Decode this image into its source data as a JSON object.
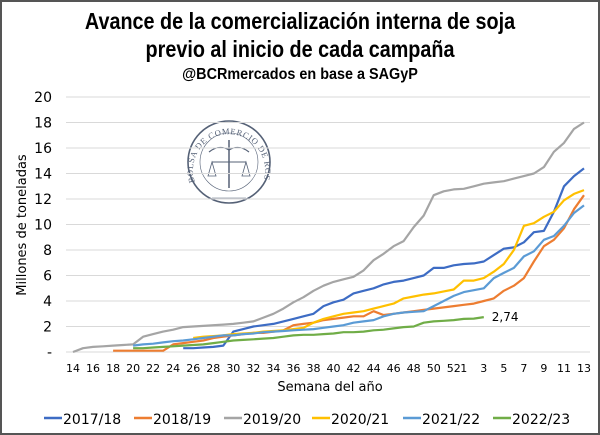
{
  "chart_data": {
    "type": "line",
    "title": [
      "Avance de la comercialización interna de soja",
      "previo al inicio de cada campaña"
    ],
    "subtitle": "@BCRmercados en base a SAGyP",
    "xlabel": "Semana del año",
    "ylabel": "Millones de toneladas",
    "ylim": [
      0,
      20
    ],
    "yticks": [
      0,
      2,
      4,
      6,
      8,
      10,
      12,
      14,
      16,
      18,
      20
    ],
    "ytick_labels": [
      "-",
      "2",
      "4",
      "6",
      "8",
      "10",
      "12",
      "14",
      "16",
      "18",
      "20"
    ],
    "grid": true,
    "legend_position": "bottom",
    "categories": [
      14,
      15,
      16,
      17,
      18,
      19,
      20,
      21,
      22,
      23,
      24,
      25,
      26,
      27,
      28,
      29,
      30,
      31,
      32,
      33,
      34,
      35,
      36,
      37,
      38,
      39,
      40,
      41,
      42,
      43,
      44,
      45,
      46,
      47,
      48,
      49,
      50,
      51,
      52,
      1,
      2,
      3,
      4,
      5,
      6,
      7,
      8,
      9,
      10,
      11,
      12,
      13
    ],
    "xtick_labels": [
      "14",
      "16",
      "18",
      "20",
      "22",
      "24",
      "26",
      "28",
      "30",
      "32",
      "34",
      "36",
      "38",
      "40",
      "42",
      "44",
      "46",
      "48",
      "50",
      "52",
      "1",
      "3",
      "5",
      "7",
      "9",
      "11",
      "13"
    ],
    "annotation": {
      "series": "2022/23",
      "week": 3,
      "text": "2,74"
    },
    "series": [
      {
        "name": "2017/18",
        "color": "#3D6CC4",
        "values": [
          null,
          null,
          null,
          null,
          null,
          null,
          null,
          null,
          null,
          null,
          null,
          0.3,
          0.3,
          0.35,
          0.4,
          0.5,
          1.6,
          1.8,
          2.0,
          2.1,
          2.2,
          2.4,
          2.6,
          2.8,
          3.0,
          3.6,
          3.9,
          4.1,
          4.6,
          4.8,
          5.0,
          5.3,
          5.5,
          5.6,
          5.8,
          6.0,
          6.6,
          6.6,
          6.8,
          6.9,
          6.95,
          7.1,
          7.6,
          8.1,
          8.2,
          8.6,
          9.4,
          9.5,
          11.0,
          13.0,
          13.8,
          14.4
        ]
      },
      {
        "name": "2018/19",
        "color": "#ED7D31",
        "values": [
          null,
          null,
          null,
          null,
          0.1,
          0.1,
          0.1,
          0.1,
          0.1,
          0.1,
          0.6,
          0.7,
          0.8,
          0.9,
          1.1,
          1.2,
          1.3,
          1.4,
          1.5,
          1.5,
          1.6,
          1.7,
          2.1,
          2.2,
          2.3,
          2.5,
          2.6,
          2.7,
          2.8,
          2.8,
          3.2,
          2.9,
          3.0,
          3.1,
          3.2,
          3.3,
          3.4,
          3.5,
          3.6,
          3.7,
          3.8,
          4.0,
          4.2,
          4.8,
          5.2,
          5.8,
          7.1,
          8.3,
          8.8,
          9.7,
          11.2,
          12.3
        ]
      },
      {
        "name": "2019/20",
        "color": "#A5A5A5",
        "values": [
          0,
          0.3,
          0.4,
          0.45,
          0.5,
          0.55,
          0.6,
          1.2,
          1.4,
          1.6,
          1.75,
          1.95,
          2.0,
          2.05,
          2.1,
          2.15,
          2.2,
          2.3,
          2.4,
          2.7,
          3.0,
          3.4,
          3.9,
          4.3,
          4.8,
          5.2,
          5.5,
          5.7,
          5.9,
          6.4,
          7.2,
          7.7,
          8.3,
          8.7,
          9.8,
          10.7,
          12.3,
          12.6,
          12.75,
          12.8,
          13.0,
          13.2,
          13.3,
          13.4,
          13.6,
          13.8,
          14.0,
          14.5,
          15.7,
          16.4,
          17.5,
          18.0
        ]
      },
      {
        "name": "2020/21",
        "color": "#FFC000",
        "values": [
          null,
          null,
          null,
          null,
          null,
          null,
          null,
          null,
          null,
          null,
          null,
          null,
          1.1,
          1.2,
          1.25,
          1.3,
          1.4,
          1.45,
          1.5,
          1.6,
          1.65,
          1.7,
          1.8,
          1.9,
          2.3,
          2.6,
          2.8,
          3.0,
          3.1,
          3.2,
          3.4,
          3.6,
          3.8,
          4.2,
          4.35,
          4.5,
          4.6,
          4.75,
          4.9,
          5.6,
          5.6,
          5.8,
          6.3,
          6.9,
          8.0,
          9.9,
          10.1,
          10.6,
          11.0,
          11.9,
          12.4,
          12.7
        ]
      },
      {
        "name": "2021/22",
        "color": "#5B9BD5",
        "values": [
          null,
          null,
          null,
          null,
          null,
          null,
          0.5,
          0.6,
          0.65,
          0.75,
          0.85,
          0.9,
          1.0,
          1.1,
          1.2,
          1.3,
          1.3,
          1.4,
          1.45,
          1.55,
          1.6,
          1.65,
          1.7,
          1.75,
          1.8,
          1.9,
          2.0,
          2.1,
          2.3,
          2.4,
          2.5,
          2.8,
          3.0,
          3.1,
          3.15,
          3.2,
          3.6,
          4.0,
          4.4,
          4.7,
          4.85,
          5.0,
          5.8,
          6.2,
          6.6,
          7.5,
          7.9,
          8.8,
          9.1,
          9.9,
          10.9,
          11.5
        ]
      },
      {
        "name": "2022/23",
        "color": "#70AD47",
        "values": [
          null,
          null,
          null,
          null,
          null,
          null,
          0.3,
          0.3,
          0.35,
          0.4,
          0.45,
          0.5,
          0.55,
          0.6,
          0.7,
          0.8,
          0.9,
          0.95,
          1.0,
          1.05,
          1.1,
          1.2,
          1.3,
          1.35,
          1.35,
          1.4,
          1.45,
          1.55,
          1.55,
          1.6,
          1.7,
          1.75,
          1.85,
          1.95,
          2.0,
          2.3,
          2.4,
          2.45,
          2.5,
          2.6,
          2.62,
          2.74,
          null,
          null,
          null,
          null,
          null,
          null,
          null,
          null,
          null,
          null
        ]
      }
    ]
  },
  "logo": {
    "text": "BOLSA DE COMERCIO DE ROSARIO"
  }
}
